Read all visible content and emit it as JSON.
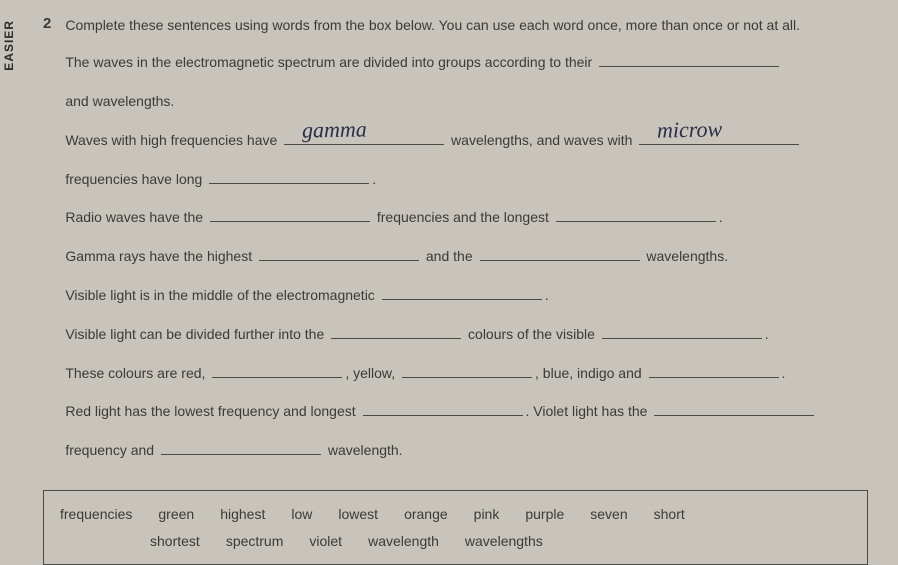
{
  "tab": "EASIER",
  "question": {
    "number": "2",
    "instruction": "Complete these sentences using words from the box below. You can use each word once, more than once or not at all."
  },
  "lines": {
    "l1a": "The waves in the electromagnetic spectrum are divided into groups according to their ",
    "l1b": "and wavelengths.",
    "l2a": "Waves with high frequencies have ",
    "l2b": " wavelengths, and waves with ",
    "l3a": "frequencies have long ",
    "l3b": ".",
    "l4a": "Radio waves have the ",
    "l4b": " frequencies and the longest ",
    "l4c": ".",
    "l5a": "Gamma rays have the highest ",
    "l5b": " and the ",
    "l5c": " wavelengths.",
    "l6a": "Visible light is in the middle of the electromagnetic ",
    "l6b": ".",
    "l7a": "Visible light can be divided further into the ",
    "l7b": " colours of the visible ",
    "l7c": ".",
    "l8a": "These colours are red, ",
    "l8b": ", yellow, ",
    "l8c": ", blue, indigo and ",
    "l8d": ".",
    "l9a": "Red light has the lowest frequency and longest ",
    "l9b": ". Violet light has the ",
    "l10a": "frequency and ",
    "l10b": " wavelength."
  },
  "handwritten": {
    "h1": "gamma",
    "h2": "microw"
  },
  "wordbox": {
    "row1": [
      "frequencies",
      "green",
      "highest",
      "low",
      "lowest",
      "orange",
      "pink",
      "purple",
      "seven",
      "short"
    ],
    "row2": [
      "shortest",
      "spectrum",
      "violet",
      "wavelength",
      "wavelengths"
    ]
  }
}
